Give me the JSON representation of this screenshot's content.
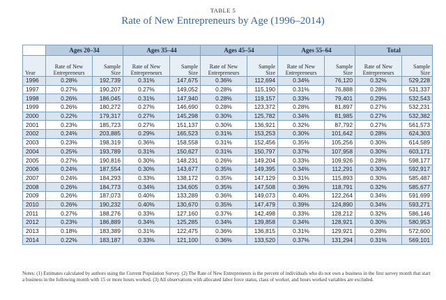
{
  "table_label": "TABLE 5",
  "title": "Rate of New Entrepreneurs by Age (1996–2014)",
  "groups": [
    "Ages 20–34",
    "Ages 35–44",
    "Ages 45–54",
    "Ages 55–64",
    "Total"
  ],
  "col_headers": {
    "year": "Year",
    "rate_line1": "Rate of New",
    "rate_line2": "Entrepreneurs",
    "size_line1": "Sample",
    "size_line2": "Size"
  },
  "rows": [
    [
      "1996",
      "0.28%",
      "192,739",
      "0.31%",
      "147,675",
      "0.36%",
      "112,694",
      "0.34%",
      "76,120",
      "0.32%",
      "529,228"
    ],
    [
      "1997",
      "0.27%",
      "190,207",
      "0.27%",
      "149,052",
      "0.28%",
      "115,190",
      "0.31%",
      "76,888",
      "0.28%",
      "531,337"
    ],
    [
      "1998",
      "0.26%",
      "186,045",
      "0.31%",
      "147,940",
      "0.28%",
      "119,157",
      "0.33%",
      "79,401",
      "0.29%",
      "532,543"
    ],
    [
      "1999",
      "0.26%",
      "180,272",
      "0.27%",
      "146,690",
      "0.28%",
      "123,372",
      "0.28%",
      "81,897",
      "0.27%",
      "532,231"
    ],
    [
      "2000",
      "0.22%",
      "179,317",
      "0.27%",
      "145,298",
      "0.30%",
      "125,782",
      "0.34%",
      "81,985",
      "0.27%",
      "532,382"
    ],
    [
      "2001",
      "0.23%",
      "185,723",
      "0.27%",
      "151,137",
      "0.30%",
      "136,921",
      "0.32%",
      "87,792",
      "0.27%",
      "561,573"
    ],
    [
      "2002",
      "0.24%",
      "203,885",
      "0.29%",
      "165,523",
      "0.31%",
      "153,253",
      "0.30%",
      "101,642",
      "0.28%",
      "624,303"
    ],
    [
      "2003",
      "0.23%",
      "198,319",
      "0.36%",
      "158,558",
      "0.31%",
      "152,456",
      "0.35%",
      "105,256",
      "0.30%",
      "614,589"
    ],
    [
      "2004",
      "0.25%",
      "193,789",
      "0.31%",
      "150,627",
      "0.31%",
      "150,797",
      "0.37%",
      "107,958",
      "0.30%",
      "603,171"
    ],
    [
      "2005",
      "0.27%",
      "190,816",
      "0.30%",
      "148,231",
      "0.26%",
      "149,204",
      "0.33%",
      "109,926",
      "0.28%",
      "598,177"
    ],
    [
      "2006",
      "0.24%",
      "187,554",
      "0.30%",
      "143,677",
      "0.35%",
      "149,395",
      "0.34%",
      "112,291",
      "0.30%",
      "592,917"
    ],
    [
      "2007",
      "0.24%",
      "184,293",
      "0.33%",
      "138,172",
      "0.35%",
      "147,129",
      "0.31%",
      "115,893",
      "0.30%",
      "585,487"
    ],
    [
      "2008",
      "0.26%",
      "184,773",
      "0.34%",
      "134,605",
      "0.35%",
      "147,508",
      "0.36%",
      "118,791",
      "0.32%",
      "585,677"
    ],
    [
      "2009",
      "0.26%",
      "187,073",
      "0.40%",
      "133,289",
      "0.36%",
      "149,073",
      "0.40%",
      "122,264",
      "0.34%",
      "591,699"
    ],
    [
      "2010",
      "0.26%",
      "190,232",
      "0.40%",
      "130,670",
      "0.35%",
      "147,479",
      "0.39%",
      "124,890",
      "0.34%",
      "593,271"
    ],
    [
      "2011",
      "0.27%",
      "188,276",
      "0.33%",
      "127,160",
      "0.37%",
      "142,498",
      "0.33%",
      "128,212",
      "0.32%",
      "586,146"
    ],
    [
      "2012",
      "0.23%",
      "186,889",
      "0.34%",
      "125,285",
      "0.34%",
      "139,858",
      "0.34%",
      "128,921",
      "0.30%",
      "580,953"
    ],
    [
      "2013",
      "0.18%",
      "183,389",
      "0.31%",
      "122,475",
      "0.36%",
      "136,815",
      "0.31%",
      "129,921",
      "0.28%",
      "572,600"
    ],
    [
      "2014",
      "0.22%",
      "183,187",
      "0.33%",
      "121,100",
      "0.36%",
      "133,520",
      "0.37%",
      "131,294",
      "0.31%",
      "569,101"
    ]
  ],
  "notes": "Notes: (1) Estimates calculated by authors using the Current Population Survey. (2) The Rate of New Entrepreneurs is the percent of individuals who do not own a business in the first survey month that start a business in the following month with 15 or more hours worked. (3) All observations with allocated labor force status, class of worker, and hours worked variables are excluded.",
  "colors": {
    "title": "#2e6aa8",
    "group_header_bg": "#b9cde0",
    "stripe_bg": "#d8e4f0",
    "border": "#7d9fbf"
  }
}
